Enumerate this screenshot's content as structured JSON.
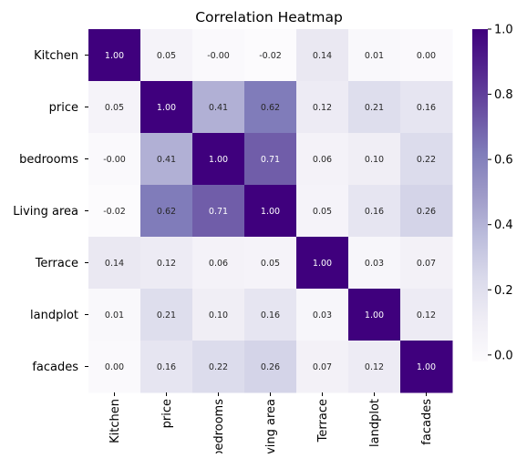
{
  "chart_data": {
    "type": "heatmap",
    "title": "Correlation Heatmap",
    "xlabel": "",
    "ylabel": "",
    "x_categories": [
      "Kitchen",
      "price",
      "bedrooms",
      "Living area",
      "Terrace",
      "landplot",
      "facades"
    ],
    "y_categories": [
      "Kitchen",
      "price",
      "bedrooms",
      "Living area",
      "Terrace",
      "landplot",
      "facades"
    ],
    "values": [
      [
        1.0,
        0.05,
        -0.0,
        -0.02,
        0.14,
        0.01,
        0.0
      ],
      [
        0.05,
        1.0,
        0.41,
        0.62,
        0.12,
        0.21,
        0.16
      ],
      [
        -0.0,
        0.41,
        1.0,
        0.71,
        0.06,
        0.1,
        0.22
      ],
      [
        -0.02,
        0.62,
        0.71,
        1.0,
        0.05,
        0.16,
        0.26
      ],
      [
        0.14,
        0.12,
        0.06,
        0.05,
        1.0,
        0.03,
        0.07
      ],
      [
        0.01,
        0.21,
        0.1,
        0.16,
        0.03,
        1.0,
        0.12
      ],
      [
        0.0,
        0.16,
        0.22,
        0.26,
        0.07,
        0.12,
        1.0
      ]
    ],
    "cell_labels": [
      [
        "1.00",
        "0.05",
        "-0.00",
        "-0.02",
        "0.14",
        "0.01",
        "0.00"
      ],
      [
        "0.05",
        "1.00",
        "0.41",
        "0.62",
        "0.12",
        "0.21",
        "0.16"
      ],
      [
        "-0.00",
        "0.41",
        "1.00",
        "0.71",
        "0.06",
        "0.10",
        "0.22"
      ],
      [
        "-0.02",
        "0.62",
        "0.71",
        "1.00",
        "0.05",
        "0.16",
        "0.26"
      ],
      [
        "0.14",
        "0.12",
        "0.06",
        "0.05",
        "1.00",
        "0.03",
        "0.07"
      ],
      [
        "0.01",
        "0.21",
        "0.10",
        "0.16",
        "0.03",
        "1.00",
        "0.12"
      ],
      [
        "0.00",
        "0.16",
        "0.22",
        "0.26",
        "0.07",
        "0.12",
        "1.00"
      ]
    ],
    "colormap": "Purples",
    "colormap_stops": [
      "#fcfbfd",
      "#efedf5",
      "#dadaeb",
      "#bcbddc",
      "#9e9ac8",
      "#807dba",
      "#6a51a3",
      "#54278f",
      "#3f007d"
    ],
    "vmin": -0.02,
    "vmax": 1.0,
    "colorbar_ticks": [
      0.0,
      0.2,
      0.4,
      0.6,
      0.8,
      1.0
    ],
    "colorbar_tick_labels": [
      "0.0",
      "0.2",
      "0.4",
      "0.6",
      "0.8",
      "1.0"
    ]
  }
}
